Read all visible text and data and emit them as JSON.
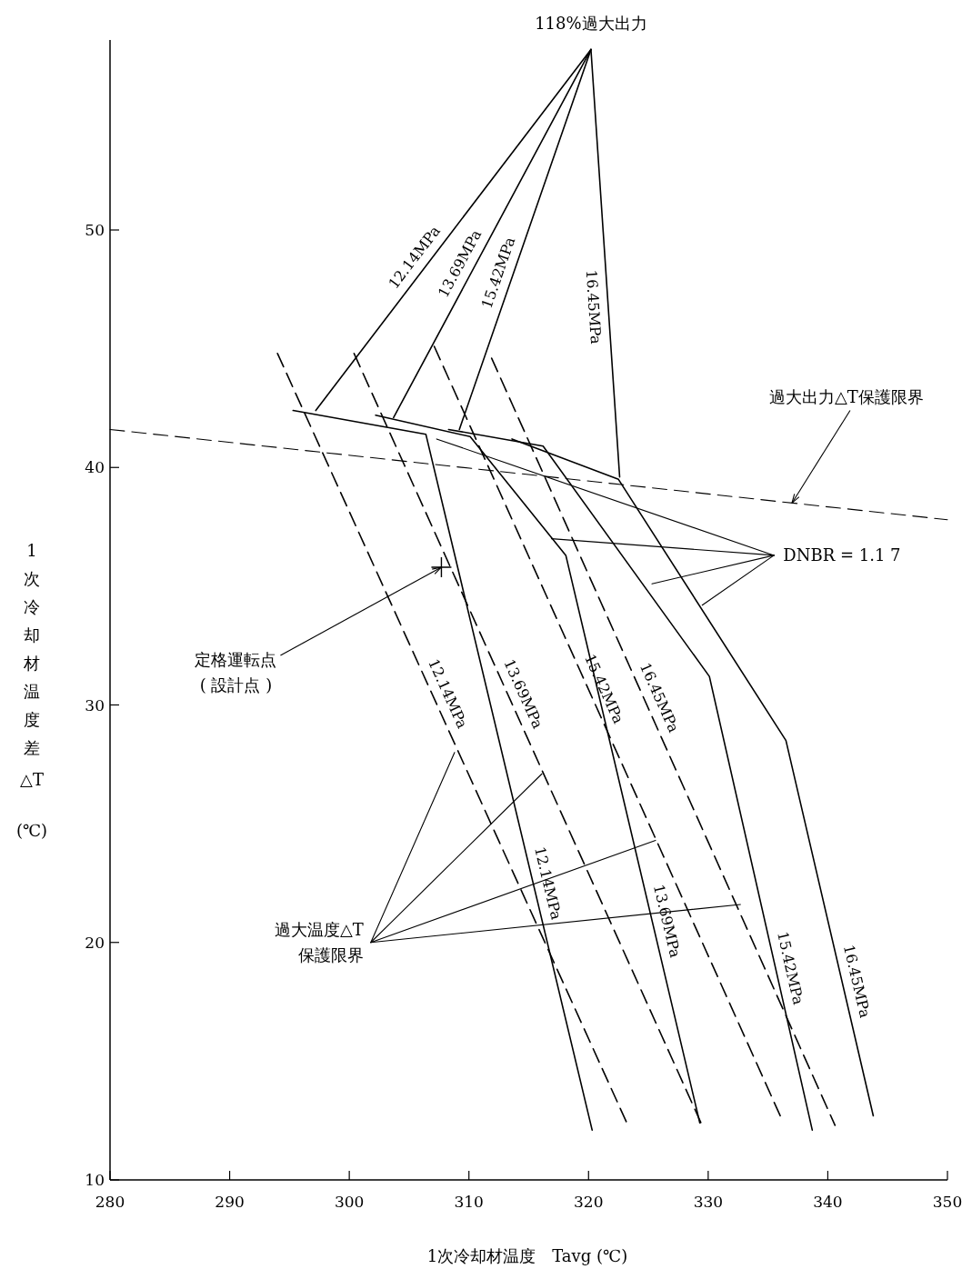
{
  "chart_data": {
    "type": "line",
    "xlabel": "1次冷却材温度　Tavg (℃)",
    "ylabel": "1次冷却材温度差 △T (℃)",
    "xlim": [
      280,
      350
    ],
    "ylim": [
      10,
      58
    ],
    "xticks": [
      280,
      290,
      300,
      310,
      320,
      330,
      340,
      350
    ],
    "yticks": [
      10,
      20,
      30,
      40,
      50
    ],
    "grid": false,
    "series": [
      {
        "color": "#000000",
        "line_style": "dashed",
        "x": [
          280,
          350
        ],
        "values": [
          41.6,
          37.8
        ]
      },
      {
        "name": "12.14MPa",
        "color": "#000000",
        "line_style": "solid",
        "x": [
          295.3,
          306.4,
          320.3
        ],
        "values": [
          42.4,
          41.4,
          12.1
        ]
      },
      {
        "name": "13.69MPa",
        "color": "#000000",
        "line_style": "solid",
        "x": [
          302.2,
          310.1,
          318.1,
          329.3
        ],
        "values": [
          42.2,
          41.3,
          36.3,
          12.4
        ]
      },
      {
        "name": "15.42MPa",
        "color": "#000000",
        "line_style": "solid",
        "x": [
          308.3,
          316.2,
          330.1,
          338.7
        ],
        "values": [
          41.6,
          40.9,
          31.2,
          12.1
        ]
      },
      {
        "name": "16.45MPa",
        "color": "#000000",
        "line_style": "solid",
        "x": [
          313.6,
          322.5,
          336.5,
          343.8
        ],
        "values": [
          41.2,
          39.5,
          28.5,
          12.7
        ]
      },
      {
        "name": "12.14MPa",
        "color": "#000000",
        "line_style": "dashed",
        "x": [
          294.0,
          323.2
        ],
        "values": [
          44.8,
          12.4
        ]
      },
      {
        "name": "13.69MPa",
        "color": "#000000",
        "line_style": "dashed",
        "x": [
          300.4,
          329.4
        ],
        "values": [
          44.8,
          12.4
        ]
      },
      {
        "name": "15.42MPa",
        "color": "#000000",
        "line_style": "dashed",
        "x": [
          307.1,
          336.2
        ],
        "values": [
          45.1,
          12.5
        ]
      },
      {
        "name": "16.45MPa",
        "color": "#000000",
        "line_style": "dashed",
        "x": [
          311.9,
          340.6
        ],
        "values": [
          44.6,
          12.3
        ]
      },
      {
        "name": "12.14MPa",
        "color": "#000000",
        "line_style": "solid",
        "x": [
          320.2,
          297.2
        ],
        "values": [
          57.6,
          42.4
        ]
      },
      {
        "name": "13.69MPa",
        "color": "#000000",
        "line_style": "solid",
        "x": [
          320.2,
          303.7
        ],
        "values": [
          57.6,
          42.1
        ]
      },
      {
        "name": "15.42MPa",
        "color": "#000000",
        "line_style": "solid",
        "x": [
          320.2,
          309.2
        ],
        "values": [
          57.6,
          41.6
        ]
      },
      {
        "name": "16.45MPa",
        "color": "#000000",
        "line_style": "solid",
        "x": [
          320.2,
          322.6
        ],
        "values": [
          57.6,
          39.6
        ]
      },
      {
        "color": "#000000",
        "line_style": "solid",
        "x": [
          335.5,
          307.3
        ],
        "values": [
          36.3,
          41.2
        ]
      },
      {
        "color": "#000000",
        "line_style": "solid",
        "x": [
          335.5,
          316.9
        ],
        "values": [
          36.3,
          37.0
        ]
      },
      {
        "color": "#000000",
        "line_style": "solid",
        "x": [
          335.5,
          325.3
        ],
        "values": [
          36.3,
          35.1
        ]
      },
      {
        "color": "#000000",
        "line_style": "solid",
        "x": [
          335.5,
          329.5
        ],
        "values": [
          36.3,
          34.2
        ]
      },
      {
        "color": "#000000",
        "line_style": "solid",
        "x": [
          301.8,
          308.8
        ],
        "values": [
          20.0,
          28.0
        ]
      },
      {
        "color": "#000000",
        "line_style": "solid",
        "x": [
          301.8,
          316.1
        ],
        "values": [
          20.0,
          27.1
        ]
      },
      {
        "color": "#000000",
        "line_style": "solid",
        "x": [
          301.8,
          325.6
        ],
        "values": [
          20.0,
          24.3
        ]
      },
      {
        "color": "#000000",
        "line_style": "solid",
        "x": [
          301.8,
          332.7
        ],
        "values": [
          20.0,
          21.6
        ]
      },
      {
        "type": "scatter",
        "marker": "cross",
        "color": "#000000",
        "x": [
          307.7
        ],
        "values": [
          35.8
        ]
      }
    ],
    "annotations": [
      {
        "text": "118%過大出力",
        "x": 320.2,
        "y": 57.6
      },
      {
        "text": "過大出力△T保護限界",
        "x": 337.0,
        "y": 38.5
      },
      {
        "text": "DNBR = 1.1 7",
        "x": 335.5,
        "y": 36.3
      },
      {
        "text": "定格運転点\n( 設計点 )",
        "x": 307.7,
        "y": 35.8
      },
      {
        "text": "過大温度△T\n保護限界",
        "x": 301.8,
        "y": 20.0
      }
    ]
  }
}
